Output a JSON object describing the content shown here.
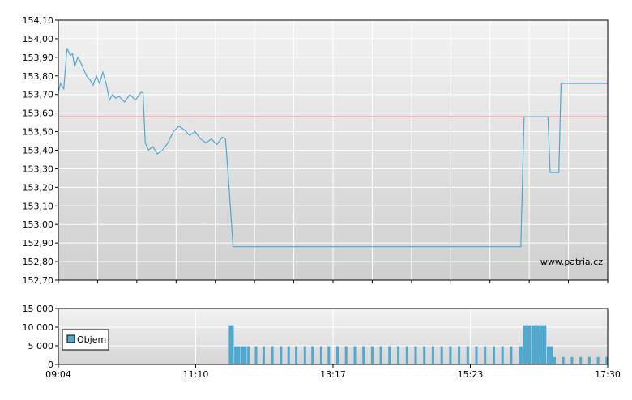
{
  "chart_data": [
    {
      "type": "line",
      "title": "",
      "xlabel": "",
      "ylabel": "",
      "ylim": [
        152.7,
        154.1
      ],
      "y_ticks": [
        "154,10",
        "154,00",
        "153,90",
        "153,80",
        "153,70",
        "153,60",
        "153,50",
        "153,40",
        "153,30",
        "153,20",
        "153,10",
        "153,00",
        "152,90",
        "152,80",
        "152,70"
      ],
      "x_range": [
        "09:04",
        "17:30"
      ],
      "reference_line": 153.58,
      "watermark": "www.patria.cz",
      "grid": true,
      "series": [
        {
          "color": "#4fa8d0",
          "points": [
            [
              "09:04",
              153.71
            ],
            [
              "09:06",
              153.76
            ],
            [
              "09:09",
              153.73
            ],
            [
              "09:10",
              153.8
            ],
            [
              "09:12",
              153.95
            ],
            [
              "09:15",
              153.91
            ],
            [
              "09:17",
              153.92
            ],
            [
              "09:19",
              153.85
            ],
            [
              "09:22",
              153.9
            ],
            [
              "09:24",
              153.88
            ],
            [
              "09:27",
              153.84
            ],
            [
              "09:30",
              153.8
            ],
            [
              "09:33",
              153.78
            ],
            [
              "09:36",
              153.75
            ],
            [
              "09:39",
              153.8
            ],
            [
              "09:42",
              153.76
            ],
            [
              "09:45",
              153.82
            ],
            [
              "09:48",
              153.76
            ],
            [
              "09:51",
              153.67
            ],
            [
              "09:54",
              153.7
            ],
            [
              "09:57",
              153.68
            ],
            [
              "10:00",
              153.69
            ],
            [
              "10:05",
              153.66
            ],
            [
              "10:10",
              153.7
            ],
            [
              "10:15",
              153.67
            ],
            [
              "10:20",
              153.71
            ],
            [
              "10:22",
              153.71
            ],
            [
              "10:24",
              153.44
            ],
            [
              "10:27",
              153.4
            ],
            [
              "10:31",
              153.42
            ],
            [
              "10:35",
              153.38
            ],
            [
              "10:40",
              153.4
            ],
            [
              "10:45",
              153.44
            ],
            [
              "10:50",
              153.5
            ],
            [
              "10:55",
              153.53
            ],
            [
              "11:00",
              153.51
            ],
            [
              "11:05",
              153.48
            ],
            [
              "11:10",
              153.5
            ],
            [
              "11:15",
              153.46
            ],
            [
              "11:20",
              153.44
            ],
            [
              "11:25",
              153.46
            ],
            [
              "11:30",
              153.43
            ],
            [
              "11:35",
              153.47
            ],
            [
              "11:38",
              153.46
            ],
            [
              "11:40",
              153.3
            ],
            [
              "11:45",
              152.88
            ],
            [
              "12:30",
              152.88
            ],
            [
              "13:30",
              152.88
            ],
            [
              "14:30",
              152.88
            ],
            [
              "15:30",
              152.88
            ],
            [
              "16:10",
              152.88
            ],
            [
              "16:13",
              153.58
            ],
            [
              "16:35",
              153.58
            ],
            [
              "16:37",
              153.28
            ],
            [
              "16:45",
              153.28
            ],
            [
              "16:47",
              153.76
            ],
            [
              "17:30",
              153.76
            ]
          ]
        }
      ]
    },
    {
      "type": "bar",
      "title": "",
      "ylim": [
        0,
        15000
      ],
      "y_ticks": [
        "15 000",
        "10 000",
        "5 000",
        "0"
      ],
      "x_ticks": [
        "09:04",
        "11:10",
        "13:17",
        "15:23",
        "17:30"
      ],
      "legend_position": "left",
      "series": [
        {
          "name": "Objem",
          "color": "#4fa8d0",
          "bars": [
            [
              "11:41",
              10500
            ],
            [
              "11:46",
              4900
            ],
            [
              "11:52",
              4900
            ],
            [
              "11:58",
              4900
            ],
            [
              "12:05",
              4900
            ],
            [
              "12:12",
              4900
            ],
            [
              "12:20",
              4900
            ],
            [
              "12:28",
              4900
            ],
            [
              "12:35",
              4900
            ],
            [
              "12:42",
              4900
            ],
            [
              "12:50",
              4900
            ],
            [
              "12:57",
              4900
            ],
            [
              "13:05",
              4900
            ],
            [
              "13:12",
              4900
            ],
            [
              "13:20",
              4900
            ],
            [
              "13:28",
              4900
            ],
            [
              "13:36",
              4900
            ],
            [
              "13:44",
              4900
            ],
            [
              "13:52",
              4900
            ],
            [
              "14:00",
              4900
            ],
            [
              "14:08",
              4900
            ],
            [
              "14:16",
              4900
            ],
            [
              "14:24",
              4900
            ],
            [
              "14:32",
              4900
            ],
            [
              "14:40",
              4900
            ],
            [
              "14:48",
              4900
            ],
            [
              "14:56",
              4900
            ],
            [
              "15:04",
              4900
            ],
            [
              "15:12",
              4900
            ],
            [
              "15:20",
              4900
            ],
            [
              "15:28",
              4900
            ],
            [
              "15:36",
              4900
            ],
            [
              "15:44",
              4900
            ],
            [
              "15:52",
              4900
            ],
            [
              "16:00",
              4900
            ],
            [
              "16:08",
              4900
            ],
            [
              "16:12",
              10500
            ],
            [
              "16:16",
              10500
            ],
            [
              "16:20",
              10500
            ],
            [
              "16:24",
              10500
            ],
            [
              "16:28",
              10500
            ],
            [
              "16:34",
              4900
            ],
            [
              "16:40",
              2000
            ],
            [
              "16:48",
              2000
            ],
            [
              "16:56",
              2000
            ],
            [
              "17:04",
              2000
            ],
            [
              "17:12",
              2000
            ],
            [
              "17:20",
              2000
            ],
            [
              "17:28",
              2000
            ]
          ]
        }
      ]
    }
  ]
}
